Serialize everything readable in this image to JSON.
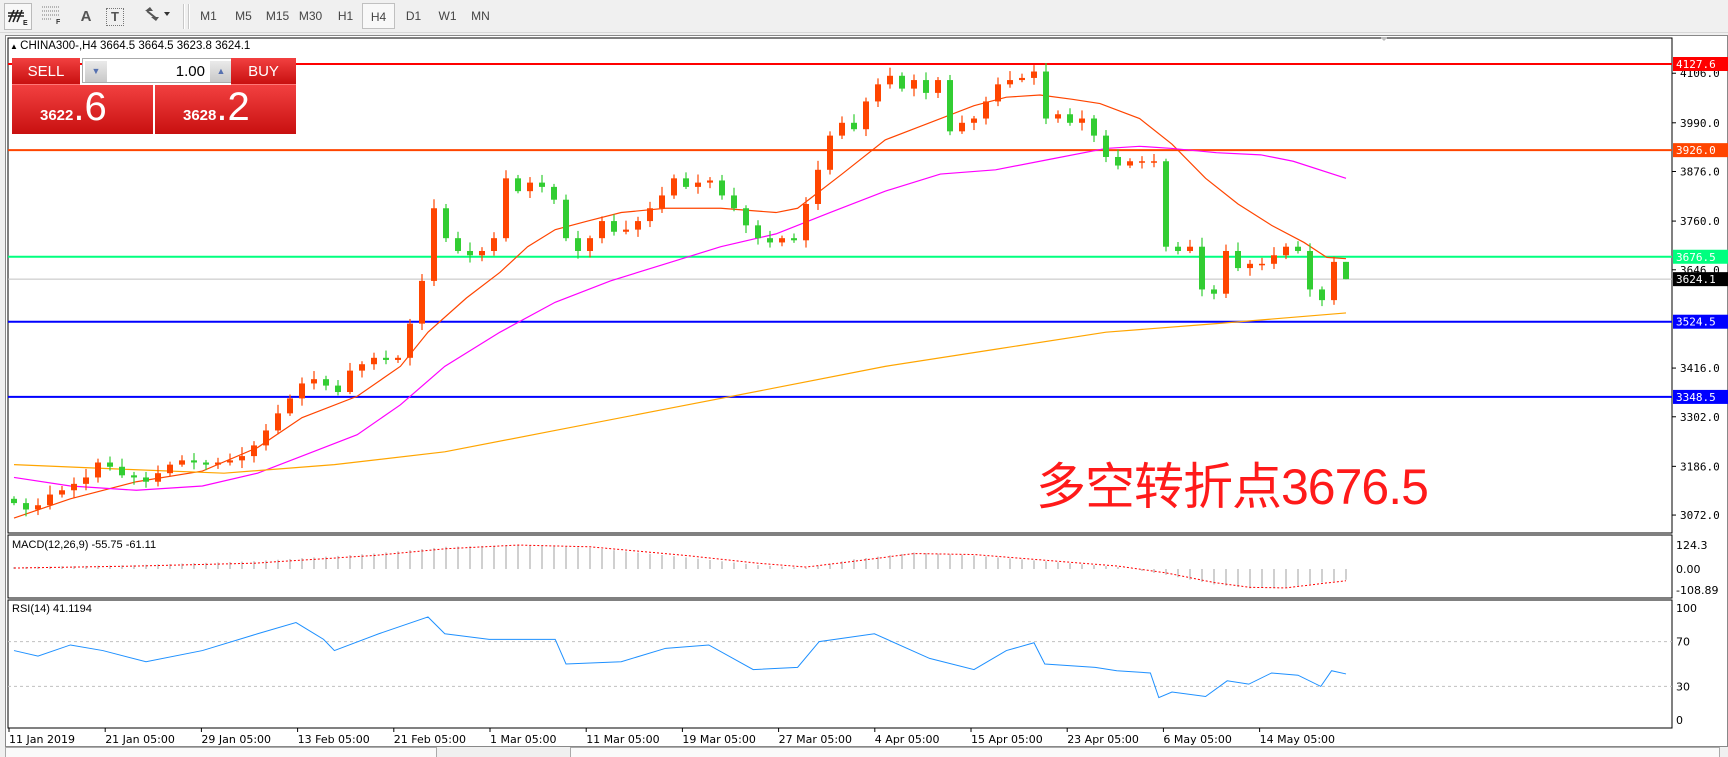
{
  "toolbar": {
    "icons": [
      "chart-style-icon",
      "grid-icon",
      "text-icon",
      "text-label-icon",
      "arrows-icon"
    ],
    "icon_glyphs": {
      "text": "A",
      "text_label": "T"
    },
    "timeframes": [
      "M1",
      "M5",
      "M15",
      "M30",
      "H1",
      "H4",
      "D1",
      "W1",
      "MN"
    ],
    "active_timeframe": "H4"
  },
  "chart": {
    "title": "CHINA300-,H4  3664.5 3664.5 3623.8 3624.1",
    "annotation": "多空转折点3676.5"
  },
  "trade_panel": {
    "sell_label": "SELL",
    "buy_label": "BUY",
    "lot": "1.00",
    "sell_price_small": "3622",
    "sell_price_large": ".6",
    "buy_price_small": "3628",
    "buy_price_large": ".2",
    "color": "#d81818"
  },
  "chart_data": [
    {
      "type": "candlestick",
      "symbol": "CHINA300-",
      "timeframe": "H4",
      "up_color": "#ff4500",
      "down_color": "#32cd32",
      "ylim": [
        3040,
        4175
      ],
      "y_ticks": [
        "4106.0",
        "3990.0",
        "3876.0",
        "3760.0",
        "3646.0",
        "3416.0",
        "3302.0",
        "3186.0",
        "3072.0"
      ],
      "x_tick_labels": [
        "11 Jan 2019",
        "21 Jan 05:00",
        "29 Jan 05:00",
        "13 Feb 05:00",
        "21 Feb 05:00",
        "1 Mar 05:00",
        "11 Mar 05:00",
        "19 Mar 05:00",
        "27 Mar 05:00",
        "4 Apr 05:00",
        "15 Apr 05:00",
        "23 Apr 05:00",
        "6 May 05:00",
        "14 May 05:00"
      ],
      "close": [
        3100,
        3085,
        3095,
        3120,
        3130,
        3145,
        3160,
        3195,
        3185,
        3165,
        3160,
        3150,
        3170,
        3190,
        3200,
        3195,
        3190,
        3195,
        3200,
        3210,
        3235,
        3270,
        3310,
        3345,
        3380,
        3390,
        3375,
        3360,
        3410,
        3425,
        3440,
        3435,
        3440,
        3520,
        3620,
        3790,
        3720,
        3690,
        3680,
        3690,
        3720,
        3860,
        3830,
        3850,
        3840,
        3810,
        3720,
        3690,
        3720,
        3760,
        3735,
        3740,
        3760,
        3790,
        3820,
        3860,
        3840,
        3850,
        3855,
        3820,
        3790,
        3750,
        3720,
        3710,
        3720,
        3715,
        3800,
        3880,
        3960,
        3990,
        3975,
        4040,
        4080,
        4100,
        4070,
        4090,
        4060,
        4090,
        3970,
        3990,
        4000,
        4040,
        4080,
        4090,
        4095,
        4110,
        4000,
        4010,
        3990,
        4000,
        3960,
        3910,
        3890,
        3900,
        3900,
        3900,
        3700,
        3690,
        3700,
        3600,
        3590,
        3690,
        3650,
        3660,
        3660,
        3680,
        3700,
        3690,
        3600,
        3575,
        3664.5,
        3624.1
      ],
      "last_bar": {
        "open": 3664.5,
        "high": 3664.5,
        "low": 3623.8,
        "close": 3624.1
      },
      "moving_averages": [
        {
          "color": "#ff4500",
          "points": [
            [
              0,
              3065
            ],
            [
              4.7,
              3110
            ],
            [
              10.2,
              3150
            ],
            [
              15.7,
              3175
            ],
            [
              20.3,
              3230
            ],
            [
              24,
              3300
            ],
            [
              28.6,
              3350
            ],
            [
              32.2,
              3420
            ],
            [
              34.5,
              3500
            ],
            [
              37.7,
              3580
            ],
            [
              40.5,
              3640
            ],
            [
              42.8,
              3700
            ],
            [
              45.1,
              3740
            ],
            [
              47.8,
              3760
            ],
            [
              50.6,
              3780
            ],
            [
              54.3,
              3790
            ],
            [
              58.9,
              3790
            ],
            [
              63.5,
              3780
            ],
            [
              65.3,
              3790
            ],
            [
              69,
              3870
            ],
            [
              72.6,
              3950
            ],
            [
              76.3,
              3990
            ],
            [
              80,
              4030
            ],
            [
              82.7,
              4050
            ],
            [
              85.5,
              4055
            ],
            [
              88.2,
              4045
            ],
            [
              90.5,
              4035
            ],
            [
              93.8,
              4000
            ],
            [
              96.5,
              3940
            ],
            [
              99.3,
              3860
            ],
            [
              102,
              3800
            ],
            [
              104.8,
              3750
            ],
            [
              107.5,
              3710
            ],
            [
              109.4,
              3675
            ],
            [
              111,
              3672
            ]
          ]
        },
        {
          "color": "#ff00ff",
          "points": [
            [
              0,
              3160
            ],
            [
              4.7,
              3140
            ],
            [
              10.2,
              3130
            ],
            [
              15.7,
              3140
            ],
            [
              20.3,
              3170
            ],
            [
              24,
              3210
            ],
            [
              28.6,
              3260
            ],
            [
              32.2,
              3330
            ],
            [
              35.9,
              3420
            ],
            [
              40.5,
              3500
            ],
            [
              45.1,
              3570
            ],
            [
              49.7,
              3620
            ],
            [
              54.3,
              3660
            ],
            [
              58.9,
              3700
            ],
            [
              63.5,
              3730
            ],
            [
              68,
              3780
            ],
            [
              72.6,
              3830
            ],
            [
              77.2,
              3870
            ],
            [
              81.8,
              3880
            ],
            [
              86.4,
              3905
            ],
            [
              91,
              3930
            ],
            [
              93.8,
              3935
            ],
            [
              96.5,
              3930
            ],
            [
              100.2,
              3920
            ],
            [
              103.9,
              3915
            ],
            [
              106.6,
              3900
            ],
            [
              111,
              3860
            ]
          ]
        },
        {
          "color": "#ffa500",
          "points": [
            [
              0,
              3190
            ],
            [
              8.4,
              3180
            ],
            [
              17.5,
              3170
            ],
            [
              26.7,
              3190
            ],
            [
              35.9,
              3220
            ],
            [
              45.1,
              3270
            ],
            [
              54.3,
              3320
            ],
            [
              63.5,
              3370
            ],
            [
              72.6,
              3420
            ],
            [
              81.8,
              3460
            ],
            [
              91,
              3500
            ],
            [
              100.2,
              3520
            ],
            [
              111,
              3545
            ]
          ]
        }
      ],
      "horizontal_lines": [
        {
          "value": 4127.6,
          "label": "4127.6",
          "color": "#ff0000"
        },
        {
          "value": 3926.0,
          "label": "3926.0",
          "color": "#ff4500"
        },
        {
          "value": 3676.5,
          "label": "3676.5",
          "color": "#00ff7f"
        },
        {
          "value": 3624.1,
          "label": "3624.1",
          "color": "#000000",
          "line_color": "#c0c0c0"
        },
        {
          "value": 3524.5,
          "label": "3524.5",
          "color": "#0000ff"
        },
        {
          "value": 3348.5,
          "label": "3348.5",
          "color": "#0000ff"
        }
      ]
    },
    {
      "type": "bar",
      "indicator": "MACD(12,26,9) -55.75 -61.11",
      "ylim": [
        -108.89,
        124.3
      ],
      "y_ticks": [
        "124.3",
        "0.00",
        "-108.89"
      ],
      "histogram_color": "#c0c0c0",
      "signal_color": "#ff0000",
      "histogram_points": [
        [
          0,
          10
        ],
        [
          10,
          20
        ],
        [
          20,
          40
        ],
        [
          30,
          80
        ],
        [
          36,
          115
        ],
        [
          42,
          124
        ],
        [
          48,
          110
        ],
        [
          56,
          60
        ],
        [
          62,
          20
        ],
        [
          66,
          5
        ],
        [
          70,
          50
        ],
        [
          75,
          85
        ],
        [
          80,
          70
        ],
        [
          86,
          40
        ],
        [
          92,
          10
        ],
        [
          96,
          -30
        ],
        [
          100,
          -80
        ],
        [
          103,
          -100
        ],
        [
          106,
          -95
        ],
        [
          109,
          -70
        ],
        [
          111,
          -55.75
        ]
      ],
      "signal_points": [
        [
          0,
          5
        ],
        [
          10,
          15
        ],
        [
          20,
          30
        ],
        [
          30,
          70
        ],
        [
          36,
          105
        ],
        [
          42,
          124
        ],
        [
          48,
          115
        ],
        [
          56,
          70
        ],
        [
          62,
          30
        ],
        [
          66,
          10
        ],
        [
          70,
          40
        ],
        [
          75,
          80
        ],
        [
          80,
          75
        ],
        [
          86,
          45
        ],
        [
          92,
          15
        ],
        [
          96,
          -20
        ],
        [
          100,
          -70
        ],
        [
          103,
          -95
        ],
        [
          106,
          -98
        ],
        [
          109,
          -75
        ],
        [
          111,
          -61.11
        ]
      ]
    },
    {
      "type": "line",
      "indicator": "RSI(14) 41.1194",
      "ylim": [
        0,
        100
      ],
      "y_ticks": [
        "100",
        "70",
        "30",
        "0"
      ],
      "levels": [
        70,
        30
      ],
      "color": "#1e90ff",
      "points": [
        [
          0,
          62
        ],
        [
          2,
          57
        ],
        [
          4.7,
          67
        ],
        [
          7.4,
          62
        ],
        [
          11,
          52
        ],
        [
          15.7,
          62
        ],
        [
          20.3,
          77
        ],
        [
          23.5,
          87
        ],
        [
          25.8,
          72
        ],
        [
          26.7,
          62
        ],
        [
          30.4,
          77
        ],
        [
          34.5,
          92
        ],
        [
          35.9,
          77
        ],
        [
          39.6,
          72
        ],
        [
          45.1,
          72
        ],
        [
          46,
          50
        ],
        [
          50.6,
          52
        ],
        [
          54.3,
          64
        ],
        [
          57.9,
          67
        ],
        [
          61.6,
          45
        ],
        [
          65.3,
          47
        ],
        [
          67.1,
          70
        ],
        [
          71.7,
          77
        ],
        [
          76.3,
          55
        ],
        [
          80,
          45
        ],
        [
          82.7,
          62
        ],
        [
          85,
          69
        ],
        [
          85.9,
          50
        ],
        [
          90.1,
          47
        ],
        [
          91.9,
          44
        ],
        [
          94.7,
          42
        ],
        [
          95.4,
          20
        ],
        [
          96.5,
          25
        ],
        [
          99.3,
          21
        ],
        [
          101.1,
          35
        ],
        [
          102.9,
          32
        ],
        [
          104.8,
          42
        ],
        [
          107,
          40
        ],
        [
          108.9,
          30
        ],
        [
          109.8,
          44
        ],
        [
          111,
          41.12
        ]
      ]
    }
  ]
}
